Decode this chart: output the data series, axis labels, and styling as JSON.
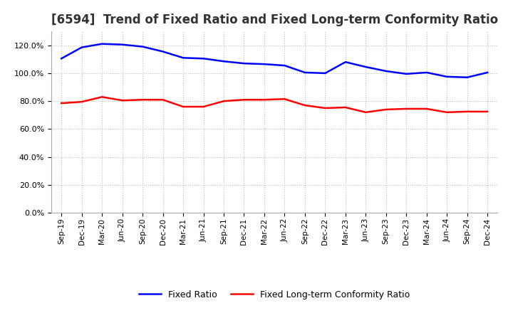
{
  "title": "[6594]  Trend of Fixed Ratio and Fixed Long-term Conformity Ratio",
  "x_labels": [
    "Sep-19",
    "Dec-19",
    "Mar-20",
    "Jun-20",
    "Sep-20",
    "Dec-20",
    "Mar-21",
    "Jun-21",
    "Sep-21",
    "Dec-21",
    "Mar-22",
    "Jun-22",
    "Sep-22",
    "Dec-22",
    "Mar-23",
    "Jun-23",
    "Sep-23",
    "Dec-23",
    "Mar-24",
    "Jun-24",
    "Sep-24",
    "Dec-24"
  ],
  "fixed_ratio": [
    110.5,
    118.5,
    121.0,
    120.5,
    119.0,
    115.5,
    111.0,
    110.5,
    108.5,
    107.0,
    106.5,
    105.5,
    100.5,
    100.0,
    108.0,
    104.5,
    101.5,
    99.5,
    100.5,
    97.5,
    97.0,
    100.5
  ],
  "fixed_lt_ratio": [
    78.5,
    79.5,
    83.0,
    80.5,
    81.0,
    81.0,
    76.0,
    76.0,
    80.0,
    81.0,
    81.0,
    81.5,
    77.0,
    75.0,
    75.5,
    72.0,
    74.0,
    74.5,
    74.5,
    72.0,
    72.5,
    72.5
  ],
  "fixed_ratio_color": "#0000FF",
  "fixed_lt_ratio_color": "#FF0000",
  "ylim": [
    0,
    130
  ],
  "yticks": [
    0,
    20,
    40,
    60,
    80,
    100,
    120
  ],
  "background_color": "#FFFFFF",
  "plot_bg_color": "#FFFFFF",
  "grid_color": "#BBBBBB",
  "title_fontsize": 12,
  "legend_labels": [
    "Fixed Ratio",
    "Fixed Long-term Conformity Ratio"
  ]
}
